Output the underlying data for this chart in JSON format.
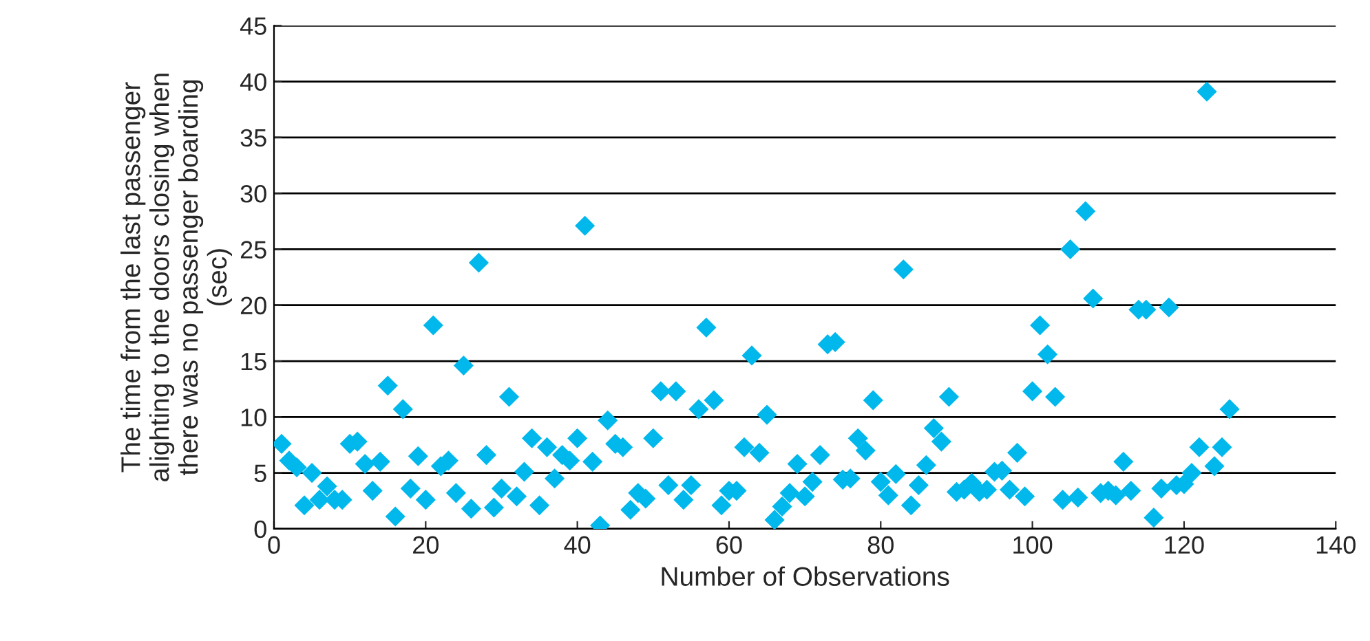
{
  "chart_data": {
    "type": "scatter",
    "xlabel": "Number of Observations",
    "ylabel": "The time from the last passenger\nalighting to the doors closing when\nthere was no passenger boarding\n(sec)",
    "x": [
      1,
      2,
      3,
      4,
      5,
      6,
      7,
      8,
      9,
      10,
      11,
      12,
      13,
      14,
      15,
      16,
      17,
      18,
      19,
      20,
      21,
      22,
      23,
      24,
      25,
      26,
      27,
      28,
      29,
      30,
      31,
      32,
      33,
      34,
      35,
      36,
      37,
      38,
      39,
      40,
      41,
      42,
      43,
      44,
      45,
      46,
      47,
      48,
      49,
      50,
      51,
      52,
      53,
      54,
      55,
      56,
      57,
      58,
      59,
      60,
      61,
      62,
      63,
      64,
      65,
      66,
      67,
      68,
      69,
      70,
      71,
      72,
      73,
      74,
      75,
      76,
      77,
      78,
      79,
      80,
      81,
      82,
      83,
      84,
      85,
      86,
      87,
      88,
      89,
      90,
      91,
      92,
      93,
      94,
      95,
      96,
      97,
      98,
      99,
      100,
      101,
      102,
      103,
      104,
      105,
      106,
      107,
      108,
      109,
      110,
      111,
      112,
      113,
      114,
      115,
      116,
      117,
      118,
      119,
      120,
      121,
      122,
      123,
      124,
      125,
      126
    ],
    "series": [
      {
        "color": "#00b8ec",
        "values": [
          7.6,
          6.1,
          5.5,
          2.1,
          5.0,
          2.6,
          3.8,
          2.6,
          2.6,
          7.6,
          7.8,
          5.8,
          3.4,
          6.0,
          12.8,
          1.1,
          10.7,
          3.6,
          6.5,
          2.6,
          18.2,
          5.6,
          6.1,
          3.2,
          14.6,
          1.8,
          23.8,
          6.6,
          1.9,
          3.6,
          11.8,
          2.9,
          5.1,
          8.1,
          2.1,
          7.3,
          4.5,
          6.6,
          6.1,
          8.1,
          27.1,
          6.0,
          0.3,
          9.7,
          7.6,
          7.3,
          1.7,
          3.2,
          2.7,
          8.1,
          12.3,
          3.9,
          12.3,
          2.6,
          3.9,
          10.7,
          18.0,
          11.5,
          2.1,
          3.4,
          3.4,
          7.3,
          15.5,
          6.8,
          10.2,
          0.8,
          2.0,
          3.2,
          5.8,
          2.9,
          4.2,
          6.6,
          16.5,
          16.7,
          4.4,
          4.5,
          8.1,
          7.0,
          11.5,
          4.2,
          3.0,
          4.9,
          23.2,
          2.1,
          3.9,
          5.7,
          9.0,
          7.8,
          11.8,
          3.3,
          3.5,
          4.1,
          3.3,
          3.5,
          5.1,
          5.2,
          3.5,
          6.8,
          2.9,
          12.3,
          18.2,
          15.6,
          11.8,
          2.6,
          25.0,
          2.8,
          28.4,
          20.6,
          3.2,
          3.4,
          3.0,
          6.0,
          3.4,
          19.6,
          19.6,
          1.0,
          3.6,
          19.8,
          3.9,
          4.0,
          5.0,
          7.3,
          39.1,
          5.6,
          7.3,
          10.7
        ]
      }
    ],
    "xlim": [
      0,
      140
    ],
    "xticks": [
      0,
      20,
      40,
      60,
      80,
      100,
      120,
      140
    ],
    "ylim": [
      0,
      45
    ],
    "yticks": [
      0,
      5,
      10,
      15,
      20,
      25,
      30,
      35,
      40,
      45
    ],
    "grid": "y",
    "marker": "diamond"
  }
}
